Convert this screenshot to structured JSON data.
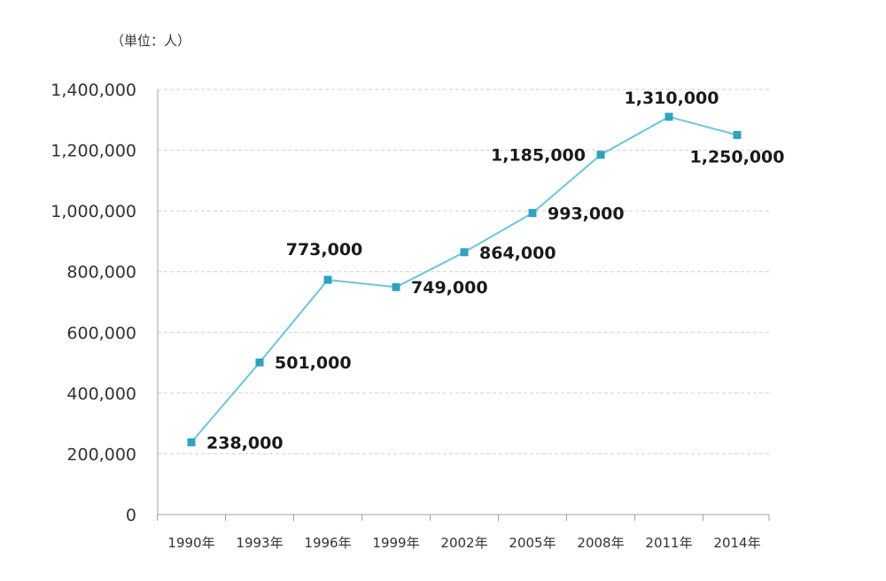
{
  "chart_data": {
    "type": "line",
    "unit_label": "（単位：人）",
    "categories": [
      "1990年",
      "1993年",
      "1996年",
      "1999年",
      "2002年",
      "2005年",
      "2008年",
      "2011年",
      "2014年"
    ],
    "series": [
      {
        "values": [
          238000,
          501000,
          773000,
          749000,
          864000,
          993000,
          1185000,
          1310000,
          1250000
        ],
        "labels": [
          "238,000",
          "501,000",
          "773,000",
          "749,000",
          "864,000",
          "993,000",
          "1,185,000",
          "1,310,000",
          "1,250,000"
        ]
      }
    ],
    "y_ticks": [
      "0",
      "200,000",
      "400,000",
      "600,000",
      "800,000",
      "1,000,000",
      "1,200,000",
      "1,400,000"
    ],
    "ylim": [
      0,
      1400000
    ],
    "y_step": 200000,
    "grid": "horizontal-dashed",
    "legend": "none",
    "colors": {
      "line": "#6cc5db",
      "marker": "#2fa3c0",
      "grid": "#d0d0d0",
      "axis": "#a0a0a0"
    }
  }
}
